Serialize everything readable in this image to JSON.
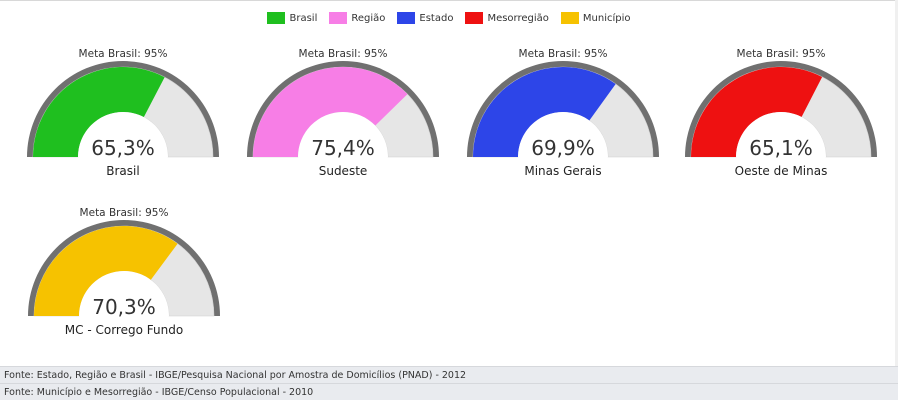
{
  "legend": [
    {
      "label": "Brasil",
      "color": "#1fbf1f"
    },
    {
      "label": "Região",
      "color": "#f77ee6"
    },
    {
      "label": "Estado",
      "color": "#2d45e8"
    },
    {
      "label": "Mesorregião",
      "color": "#ee1111"
    },
    {
      "label": "Município",
      "color": "#f6c200"
    }
  ],
  "chart_data": {
    "type": "gauge",
    "max": 100,
    "gauges": [
      {
        "meta_label": "Meta Brasil: 95%",
        "value": 65.3,
        "value_label": "65,3%",
        "name": "Brasil",
        "color": "#1fbf1f"
      },
      {
        "meta_label": "Meta Brasil: 95%",
        "value": 75.4,
        "value_label": "75,4%",
        "name": "Sudeste",
        "color": "#f77ee6"
      },
      {
        "meta_label": "Meta Brasil: 95%",
        "value": 69.9,
        "value_label": "69,9%",
        "name": "Minas Gerais",
        "color": "#2d45e8"
      },
      {
        "meta_label": "Meta Brasil: 95%",
        "value": 65.1,
        "value_label": "65,1%",
        "name": "Oeste de Minas",
        "color": "#ee1111"
      },
      {
        "meta_label": "Meta Brasil: 95%",
        "value": 70.3,
        "value_label": "70,3%",
        "name": "MC - Corrego Fundo",
        "color": "#f6c200"
      }
    ]
  },
  "footer": {
    "line1": "Fonte: Estado, Região e Brasil - IBGE/Pesquisa Nacional por Amostra de Domicílios (PNAD) - 2012",
    "line2": "Fonte: Município e Mesorregião - IBGE/Censo Populacional - 2010"
  }
}
